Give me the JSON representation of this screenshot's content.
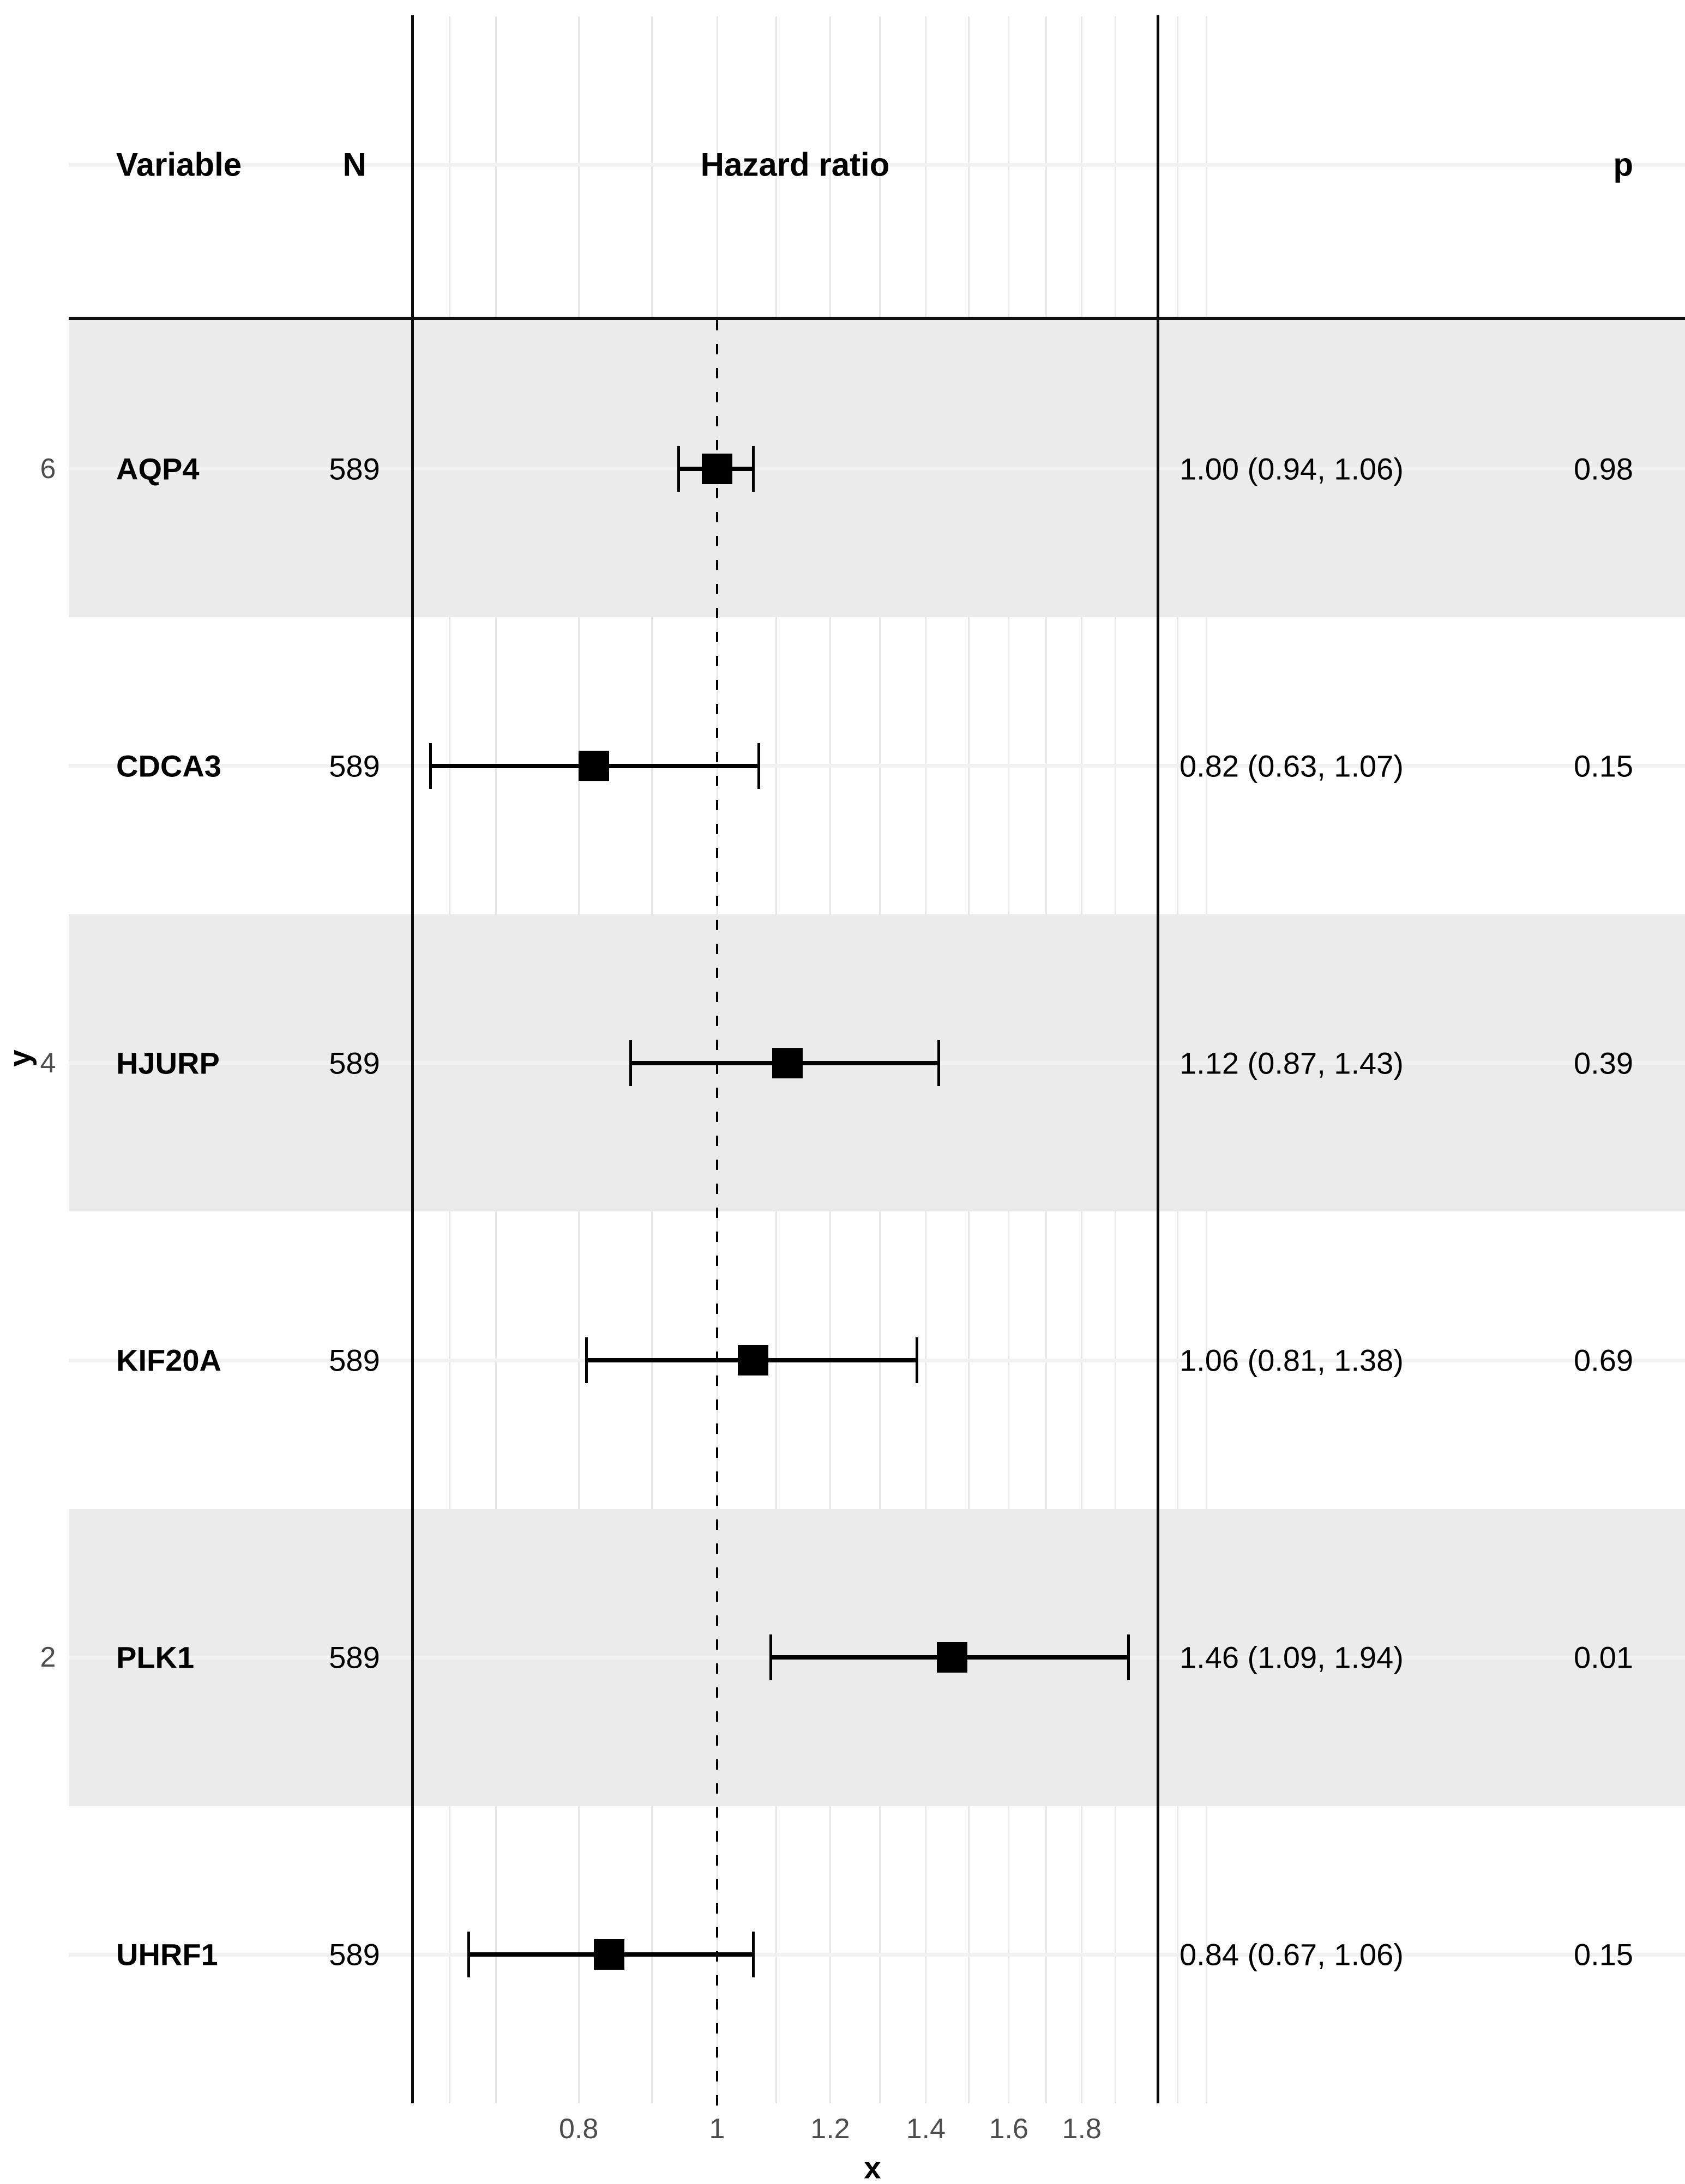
{
  "header": {
    "variable": "Variable",
    "n": "N",
    "hazard_ratio": "Hazard ratio",
    "p": "p"
  },
  "chart_data": {
    "type": "forest",
    "x_scale": "log10",
    "title": "",
    "xlabel": "x",
    "ylabel": "y",
    "x_ticks": [
      "0.8",
      "1",
      "1.2",
      "1.4",
      "1.6",
      "1.8"
    ],
    "x_tick_values": [
      0.8,
      1,
      1.2,
      1.4,
      1.6,
      1.8
    ],
    "x_domain": [
      0.61,
      2.04
    ],
    "grid_line_values": [
      0.65,
      0.7,
      0.8,
      0.9,
      1.0,
      1.1,
      1.2,
      1.3,
      1.4,
      1.5,
      1.6,
      1.7,
      1.8,
      1.9,
      2.1,
      2.2
    ],
    "reference_line": 1,
    "y_axis_ticks": [
      {
        "label": "6",
        "row_index": 0
      },
      {
        "label": "4",
        "row_index": 2
      },
      {
        "label": "2",
        "row_index": 4
      }
    ],
    "rows": [
      {
        "variable": "AQP4",
        "n": "589",
        "hr": 1.0,
        "ci_low": 0.94,
        "ci_high": 1.06,
        "estimate_label": "1.00 (0.94, 1.06)",
        "p": "0.98",
        "striped": true
      },
      {
        "variable": "CDCA3",
        "n": "589",
        "hr": 0.82,
        "ci_low": 0.63,
        "ci_high": 1.07,
        "estimate_label": "0.82 (0.63, 1.07)",
        "p": "0.15",
        "striped": false
      },
      {
        "variable": "HJURP",
        "n": "589",
        "hr": 1.12,
        "ci_low": 0.87,
        "ci_high": 1.43,
        "estimate_label": "1.12 (0.87, 1.43)",
        "p": "0.39",
        "striped": true
      },
      {
        "variable": "KIF20A",
        "n": "589",
        "hr": 1.06,
        "ci_low": 0.81,
        "ci_high": 1.38,
        "estimate_label": "1.06 (0.81, 1.38)",
        "p": "0.69",
        "striped": false
      },
      {
        "variable": "PLK1",
        "n": "589",
        "hr": 1.46,
        "ci_low": 1.09,
        "ci_high": 1.94,
        "estimate_label": "1.46 (1.09, 1.94)",
        "p": "0.01",
        "striped": true
      },
      {
        "variable": "UHRF1",
        "n": "589",
        "hr": 0.84,
        "ci_low": 0.67,
        "ci_high": 1.06,
        "estimate_label": "0.84 (0.67, 1.06)",
        "p": "0.15",
        "striped": false
      }
    ],
    "colors": {
      "stripe": "#ebebeb",
      "grid_line": "#e7e7e7",
      "row_line": "#f2f2f2",
      "marker": "#000000",
      "axis_text": "#4d4d4d",
      "text": "#000000",
      "border_line": "#0a0a0a"
    },
    "legend": null,
    "grid": "on"
  }
}
